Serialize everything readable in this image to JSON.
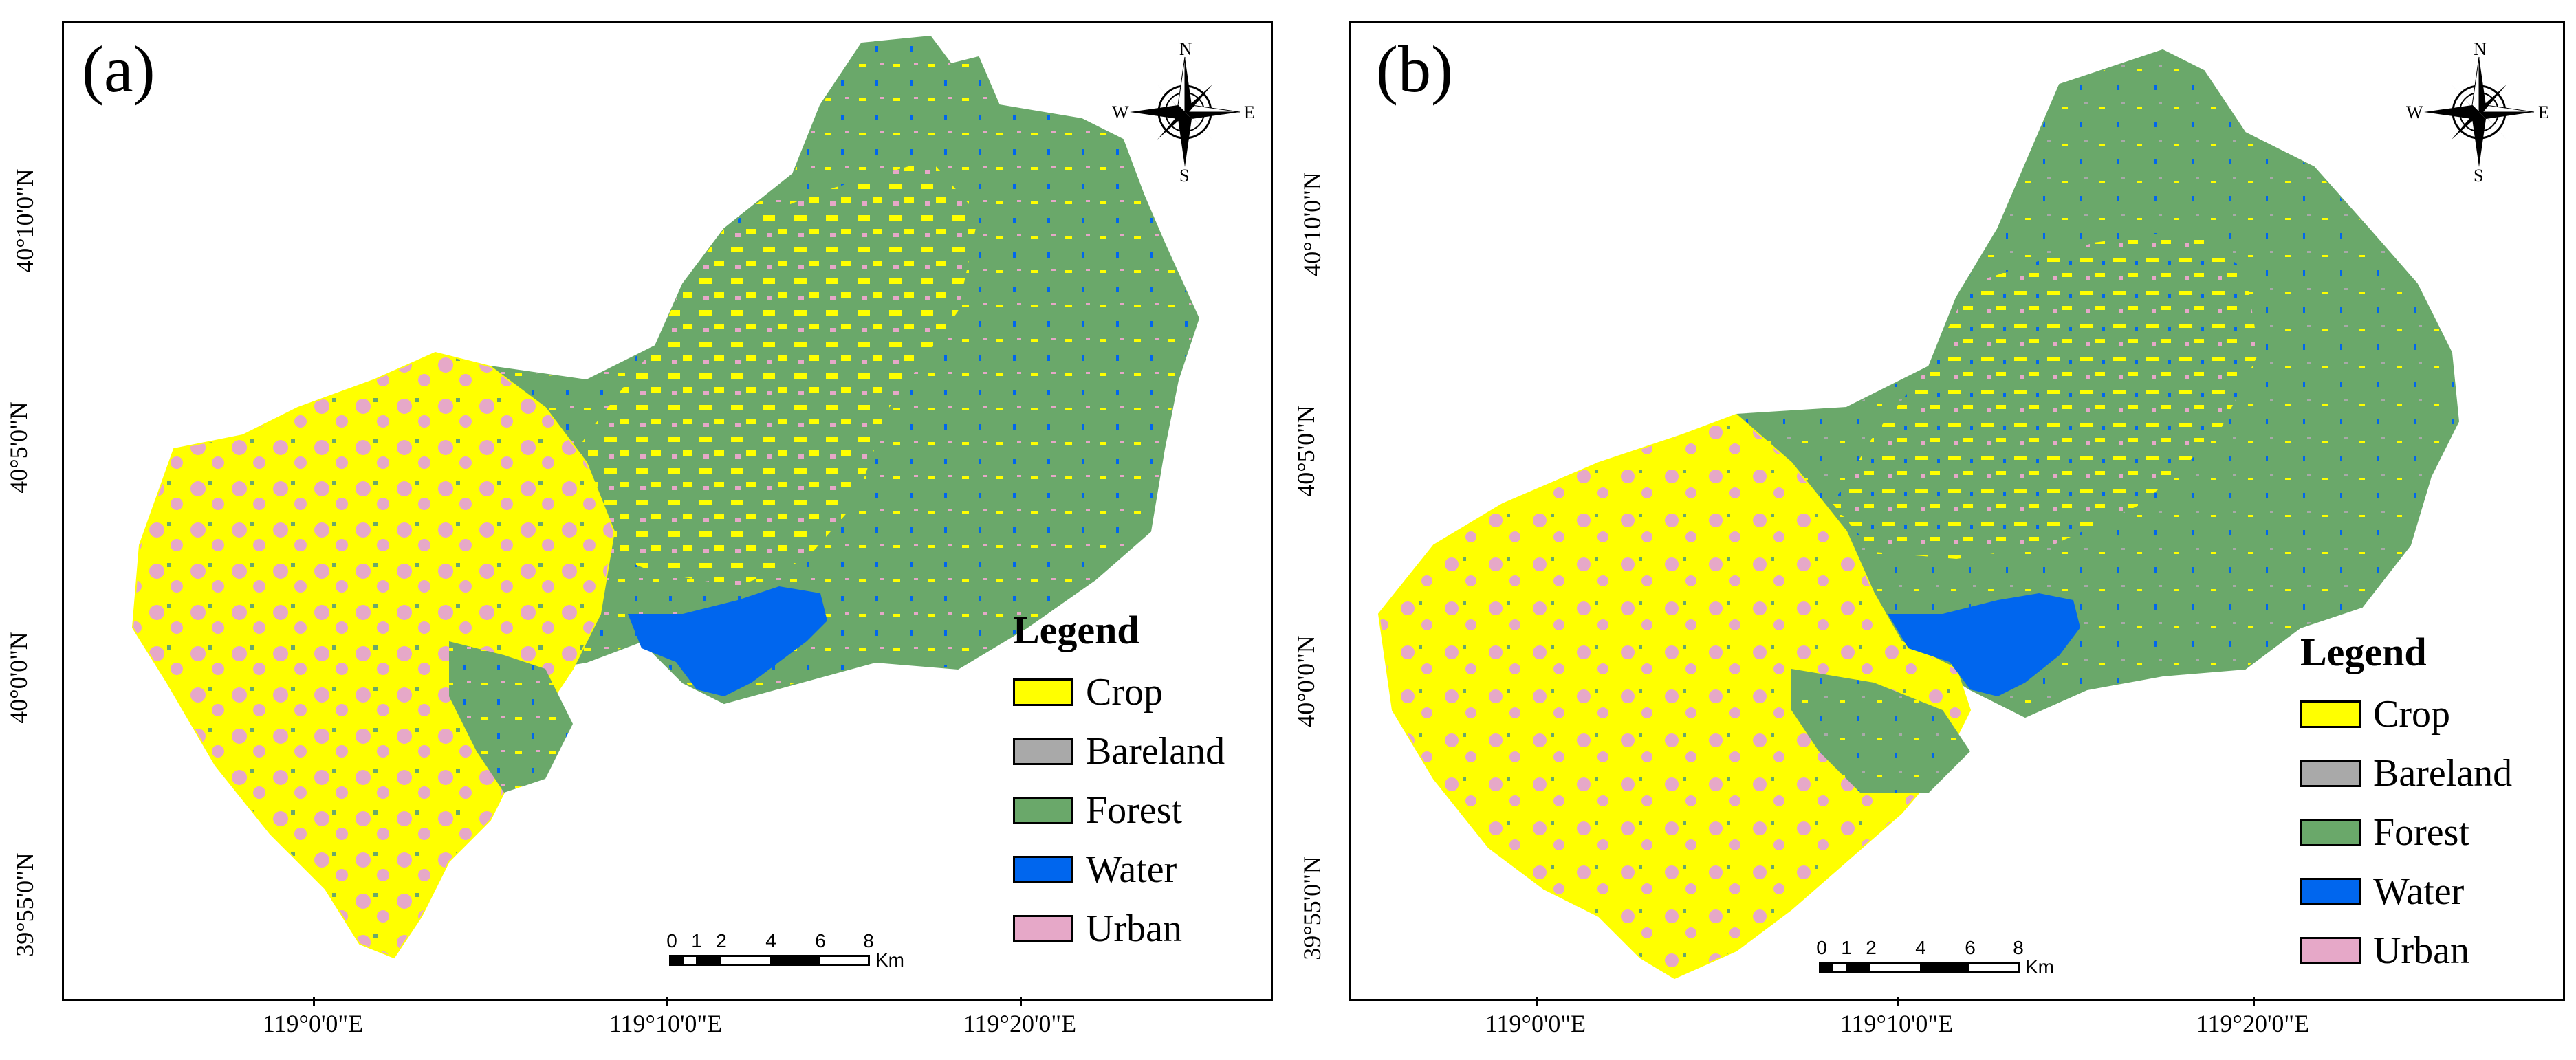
{
  "panels": [
    {
      "label": "(a)",
      "legend": {
        "title": "Legend",
        "items": [
          {
            "label": "Crop",
            "color": "#ffff00"
          },
          {
            "label": "Bareland",
            "color": "#a9a9a9"
          },
          {
            "label": "Forest",
            "color": "#6aa86a"
          },
          {
            "label": "Water",
            "color": "#0066ee"
          },
          {
            "label": "Urban",
            "color": "#e6a8c8"
          }
        ]
      },
      "scalebar": {
        "ticks": [
          "0",
          "1",
          "2",
          "4",
          "6",
          "8"
        ],
        "unit": "Km"
      },
      "compass": {
        "n": "N",
        "s": "S",
        "e": "E",
        "w": "W"
      },
      "y_ticks": [
        "40°10'0\"N",
        "40°5'0\"N",
        "40°0'0\"N",
        "39°55'0\"N"
      ],
      "x_ticks": [
        "119°0'0\"E",
        "119°10'0\"E",
        "119°20'0\"E"
      ]
    },
    {
      "label": "(b)",
      "legend": {
        "title": "Legend",
        "items": [
          {
            "label": "Crop",
            "color": "#ffff00"
          },
          {
            "label": "Bareland",
            "color": "#a9a9a9"
          },
          {
            "label": "Forest",
            "color": "#6aa86a"
          },
          {
            "label": "Water",
            "color": "#0066ee"
          },
          {
            "label": "Urban",
            "color": "#e6a8c8"
          }
        ]
      },
      "scalebar": {
        "ticks": [
          "0",
          "1",
          "2",
          "4",
          "6",
          "8"
        ],
        "unit": "Km"
      },
      "compass": {
        "n": "N",
        "s": "S",
        "e": "E",
        "w": "W"
      },
      "y_ticks": [
        "40°10'0\"N",
        "40°5'0\"N",
        "40°0'0\"N",
        "39°55'0\"N"
      ],
      "x_ticks": [
        "119°0'0\"E",
        "119°10'0\"E",
        "119°20'0\"E"
      ]
    }
  ]
}
